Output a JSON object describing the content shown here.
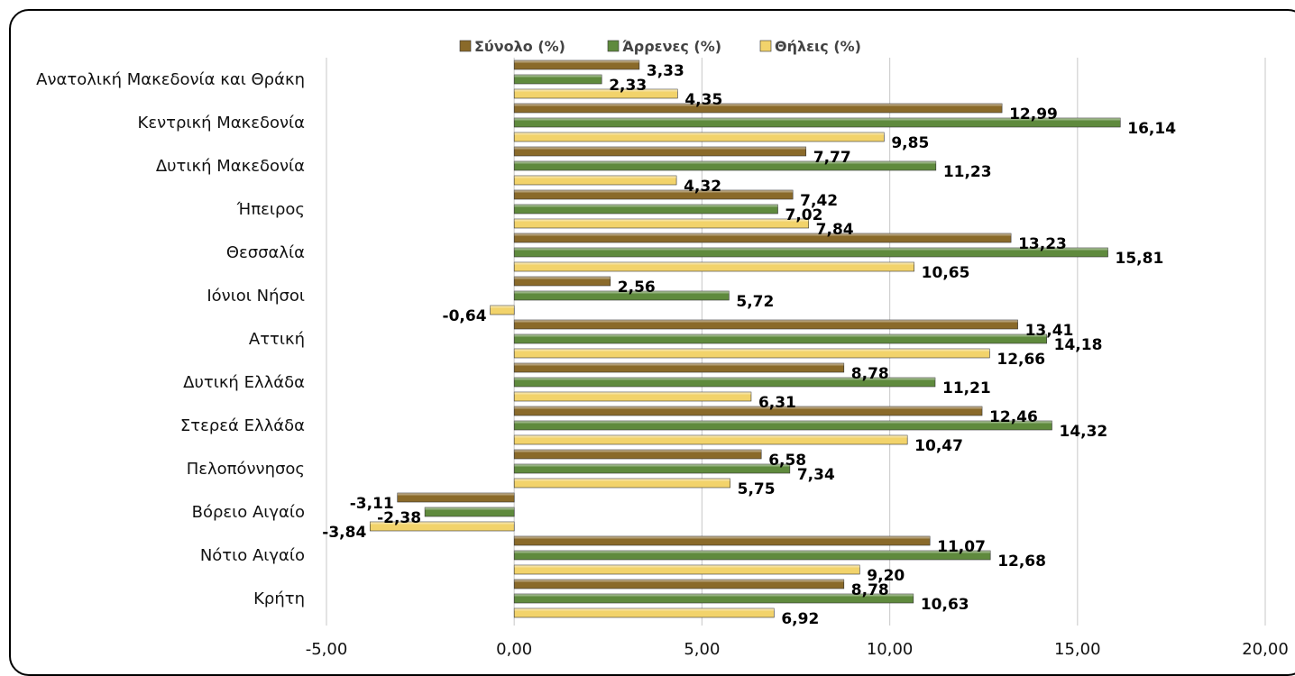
{
  "chart_data": {
    "type": "bar",
    "orientation": "horizontal",
    "categories": [
      "Ανατολική Μακεδονία και Θράκη",
      "Κεντρική Μακεδονία",
      "Δυτική Μακεδονία",
      "Ήπειρος",
      "Θεσσαλία",
      "Ιόνιοι Νήσοι",
      "Αττική",
      "Δυτική Ελλάδα",
      "Στερεά Ελλάδα",
      "Πελοπόννησος",
      "Βόρειο Αιγαίο",
      "Νότιο Αιγαίο",
      "Κρήτη"
    ],
    "series": [
      {
        "name": "Σύνολο (%)",
        "color": "#8a6a2a",
        "values": [
          3.33,
          12.99,
          7.77,
          7.42,
          13.23,
          2.56,
          13.41,
          8.78,
          12.46,
          6.58,
          -3.11,
          11.07,
          8.78
        ],
        "labels": [
          "3,33",
          "12,99",
          "7,77",
          "7,42",
          "13,23",
          "2,56",
          "13,41",
          "8,78",
          "12,46",
          "6,58",
          "-3,11",
          "11,07",
          "8,78"
        ]
      },
      {
        "name": "Άρρενες (%)",
        "color": "#5f8a3d",
        "values": [
          2.33,
          16.14,
          11.23,
          7.02,
          15.81,
          5.72,
          14.18,
          11.21,
          14.32,
          7.34,
          -2.38,
          12.68,
          10.63
        ],
        "labels": [
          "2,33",
          "16,14",
          "11,23",
          "7,02",
          "15,81",
          "5,72",
          "14,18",
          "11,21",
          "14,32",
          "7,34",
          "-2,38",
          "12,68",
          "10,63"
        ]
      },
      {
        "name": "Θήλεις (%)",
        "color": "#f2d36b",
        "values": [
          4.35,
          9.85,
          4.32,
          7.84,
          10.65,
          -0.64,
          12.66,
          6.31,
          10.47,
          5.75,
          -3.84,
          9.2,
          6.92
        ],
        "labels": [
          "4,35",
          "9,85",
          "4,32",
          "7,84",
          "10,65",
          "-0,64",
          "12,66",
          "6,31",
          "10,47",
          "5,75",
          "-3,84",
          "9,20",
          "6,92"
        ]
      }
    ],
    "xlim": [
      -5,
      20
    ],
    "xticks": [
      -5,
      0,
      5,
      10,
      15,
      20
    ],
    "xtick_labels": [
      "-5,00",
      "0,00",
      "5,00",
      "10,00",
      "15,00",
      "20,00"
    ],
    "grid": true,
    "legend": "top"
  }
}
